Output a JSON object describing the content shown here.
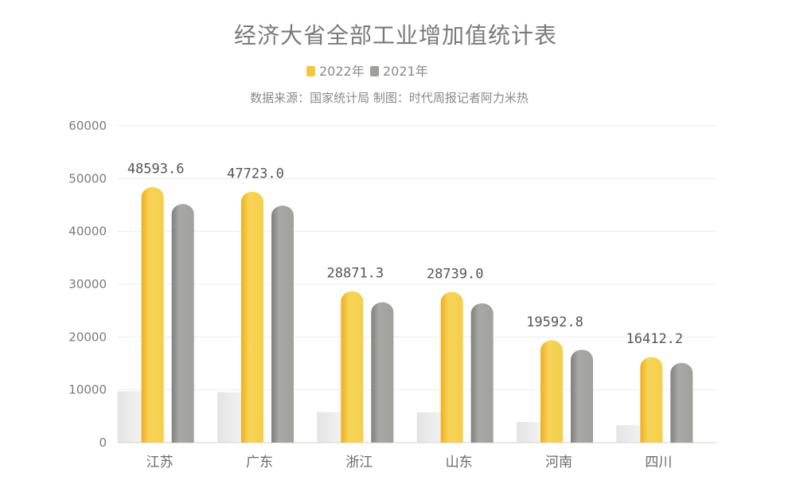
{
  "chart_data": {
    "type": "bar",
    "title": "经济大省全部工业增加值统计表",
    "subtitle": "数据来源：国家统计局 制图：时代周报记者阿力米热",
    "categories": [
      "江苏",
      "广东",
      "浙江",
      "山东",
      "河南",
      "四川"
    ],
    "series": [
      {
        "name": "2022年",
        "color": "#f5cf4a",
        "values": [
          48593.6,
          47723.0,
          28871.3,
          28739.0,
          19592.8,
          16412.2
        ]
      },
      {
        "name": "2021年",
        "color": "#a3a3a0",
        "values": [
          45400,
          45100,
          26800,
          26600,
          17800,
          15300
        ]
      }
    ],
    "data_labels": [
      "48593.6",
      "47723.0",
      "28871.3",
      "28739.0",
      "19592.8",
      "16412.2"
    ],
    "yticks": [
      "0",
      "10000",
      "20000",
      "30000",
      "40000",
      "50000",
      "60000"
    ],
    "ylim": [
      0,
      60000
    ],
    "grid": true,
    "legend_position": "top"
  }
}
